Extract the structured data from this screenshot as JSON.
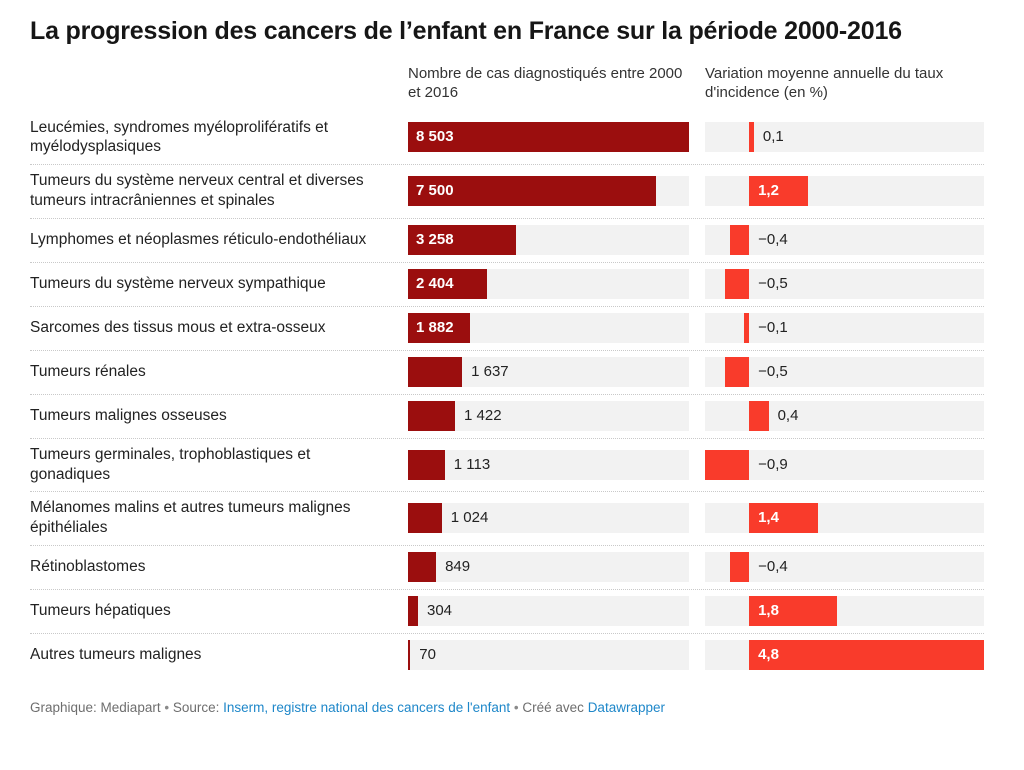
{
  "title": "La progression des cancers de l’enfant en France sur la période 2000-2016",
  "column_headers": {
    "cases": "Nombre de cas diagnostiqués entre 2000 et 2016",
    "variation": "Variation moyenne annuelle du taux d'incidence (en %)"
  },
  "footer": {
    "byline": "Graphique: Mediapart",
    "bullet1": "•",
    "source_prefix": "Source:",
    "source_link": "Inserm, registre national des cancers de l'enfant",
    "bullet2": "•",
    "created_with": "Créé avec",
    "tool_link": "Datawrapper"
  },
  "colors": {
    "cases_bar": "#9b0e0e",
    "variation_bar": "#f93b2b",
    "track": "#f2f2f2",
    "inside_label": "#ffffff",
    "outside_label": "#222222",
    "link_blue": "#1e87c9",
    "footer_gray": "#6e6e6e"
  },
  "chart_data": {
    "type": "bar",
    "orientation": "horizontal",
    "title": "La progression des cancers de l’enfant en France sur la période 2000-2016",
    "grid": false,
    "legend_position": "column-headers",
    "categories": [
      "Leucémies, syndromes myéloprolifératifs et myélodysplasiques",
      "Tumeurs du système nerveux central et diverses tumeurs intracrâniennes et spinales",
      "Lymphomes et néoplasmes réticulo-endothéliaux",
      "Tumeurs du système nerveux sympathique",
      "Sarcomes des tissus mous et extra-osseux",
      "Tumeurs rénales",
      "Tumeurs malignes osseuses",
      "Tumeurs germinales, trophoblastiques et gonadiques",
      "Mélanomes malins et autres tumeurs malignes épithéliales",
      "Rétinoblastomes",
      "Tumeurs hépatiques",
      "Autres tumeurs malignes"
    ],
    "series": [
      {
        "name": "Nombre de cas diagnostiqués entre 2000 et 2016",
        "values": [
          8503,
          7500,
          3258,
          2404,
          1882,
          1637,
          1422,
          1113,
          1024,
          849,
          304,
          70
        ],
        "value_labels": [
          "8 503",
          "7 500",
          "3 258",
          "2 404",
          "1 882",
          "1 637",
          "1 422",
          "1 113",
          "1 024",
          "849",
          "304",
          "70"
        ],
        "axis_min": 0,
        "axis_max": 8503,
        "color": "#9b0e0e"
      },
      {
        "name": "Variation moyenne annuelle du taux d'incidence (en %)",
        "values": [
          0.1,
          1.2,
          -0.4,
          -0.5,
          -0.1,
          -0.5,
          0.4,
          -0.9,
          1.4,
          -0.4,
          1.8,
          4.8
        ],
        "value_labels": [
          "0,1",
          "1,2",
          "−0,4",
          "−0,5",
          "−0,1",
          "−0,5",
          "0,4",
          "−0,9",
          "1,4",
          "−0,4",
          "1,8",
          "4,8"
        ],
        "axis_min": -0.9,
        "axis_max": 4.8,
        "color": "#f93b2b"
      }
    ]
  }
}
